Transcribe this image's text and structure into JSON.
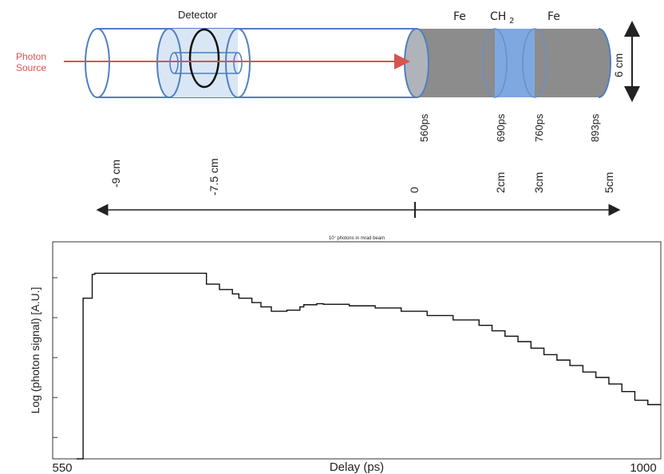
{
  "diagram": {
    "detector_label": "Detector",
    "source_label_line1": "Photon",
    "source_label_line2": "Source",
    "materials": [
      "Fe",
      "CH",
      "Fe"
    ],
    "ch_subscript": "2",
    "height_label": "6 cm",
    "times": [
      "560ps",
      "690ps",
      "760ps",
      "893ps"
    ],
    "positions": [
      "-9 cm",
      "-7.5 cm",
      "0",
      "2cm",
      "3cm",
      "5cm"
    ],
    "colors": {
      "cylinder_outline": "#4f7fbf",
      "detector_fill": "#d9e6f5",
      "fe_fill": "#8c8c8c",
      "ch2_fill": "#7fa8e0",
      "source_arrow": "#d9534f",
      "source_text": "#d9534f"
    }
  },
  "chart_data": {
    "type": "line",
    "title": "10⁷ photons in mrad beam",
    "xlabel": "Delay (ps)",
    "ylabel": "Log (photon signal) [A.U.]",
    "x_tick_labels": [
      "550",
      "1000"
    ],
    "xlim": [
      550,
      1000
    ],
    "ylim": [
      0,
      10
    ],
    "step": true,
    "series": [
      {
        "x": [
          550,
          555,
          555,
          562,
          562,
          564,
          564,
          650,
          660,
          670,
          675,
          685,
          692,
          700,
          712,
          722,
          725,
          735,
          740,
          760,
          780,
          800,
          820,
          840,
          860,
          870,
          880,
          890,
          900,
          910,
          920,
          930,
          940,
          950,
          960,
          970,
          980,
          990,
          1000
        ],
        "y": [
          0,
          0,
          7.4,
          7.4,
          8.5,
          8.5,
          8.55,
          8.05,
          7.8,
          7.6,
          7.4,
          7.2,
          7.0,
          6.8,
          6.85,
          7.0,
          7.1,
          7.15,
          7.12,
          7.05,
          6.95,
          6.8,
          6.6,
          6.4,
          6.15,
          5.9,
          5.65,
          5.4,
          5.1,
          4.8,
          4.55,
          4.3,
          4.0,
          3.75,
          3.45,
          3.1,
          2.7,
          2.5,
          2.5
        ]
      }
    ]
  }
}
